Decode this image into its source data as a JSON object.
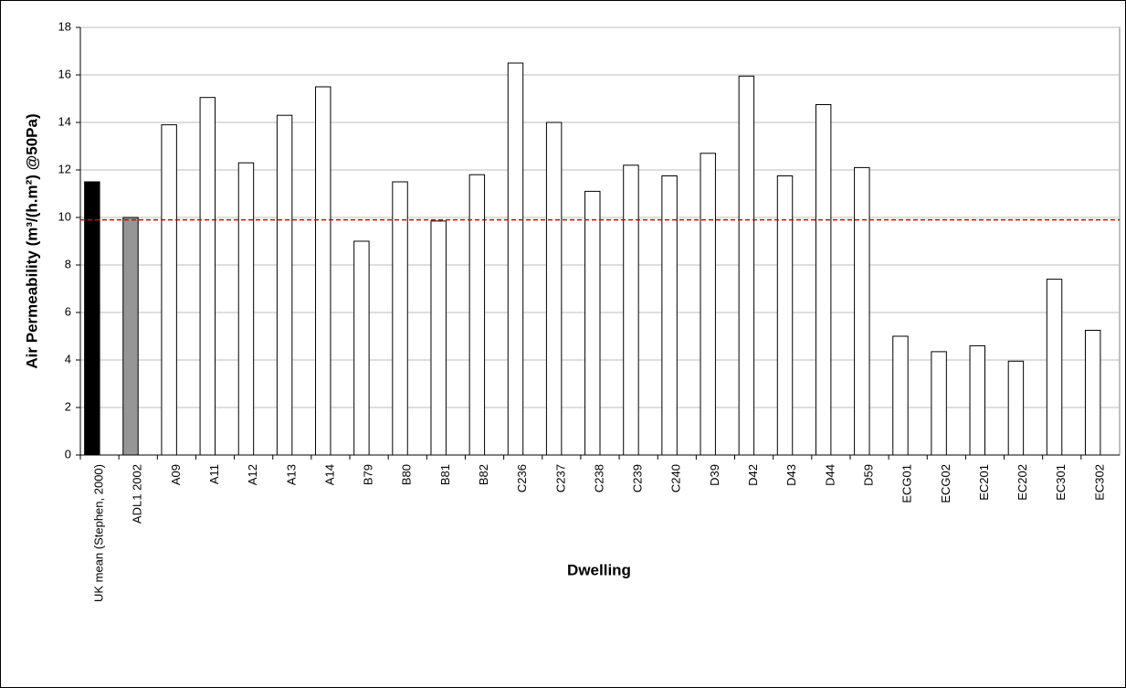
{
  "chart_data": {
    "type": "bar",
    "x_label": "Dwelling",
    "y_label": "Air Permeability (m³/(h.m²) @50Pa)",
    "categories": [
      "UK mean (Stephen, 2000)",
      "ADL1 2002",
      "A09",
      "A11",
      "A12",
      "A13",
      "A14",
      "B79",
      "B80",
      "B81",
      "B82",
      "C236",
      "C237",
      "C238",
      "C239",
      "C240",
      "D39",
      "D42",
      "D43",
      "D44",
      "D59",
      "ECG01",
      "ECG02",
      "EC201",
      "EC202",
      "EC301",
      "EC302"
    ],
    "values": [
      11.5,
      10,
      13.9,
      15.05,
      12.3,
      14.3,
      15.5,
      9.0,
      11.5,
      9.85,
      11.8,
      16.5,
      14.0,
      11.1,
      12.2,
      11.75,
      12.7,
      15.95,
      11.75,
      14.75,
      12.1,
      5.0,
      4.35,
      4.6,
      3.95,
      7.4,
      5.25
    ],
    "colors": [
      "#000000",
      "#969696",
      "#ffffff",
      "#ffffff",
      "#ffffff",
      "#ffffff",
      "#ffffff",
      "#ffffff",
      "#ffffff",
      "#ffffff",
      "#ffffff",
      "#ffffff",
      "#ffffff",
      "#ffffff",
      "#ffffff",
      "#ffffff",
      "#ffffff",
      "#ffffff",
      "#ffffff",
      "#ffffff",
      "#ffffff",
      "#ffffff",
      "#ffffff",
      "#ffffff",
      "#ffffff",
      "#ffffff",
      "#ffffff"
    ],
    "reference_line": {
      "value": 9.9,
      "color": "#e00000"
    },
    "ylim": [
      0,
      18
    ],
    "yticks": [
      0,
      2,
      4,
      6,
      8,
      10,
      12,
      14,
      16,
      18
    ],
    "grid": true
  }
}
